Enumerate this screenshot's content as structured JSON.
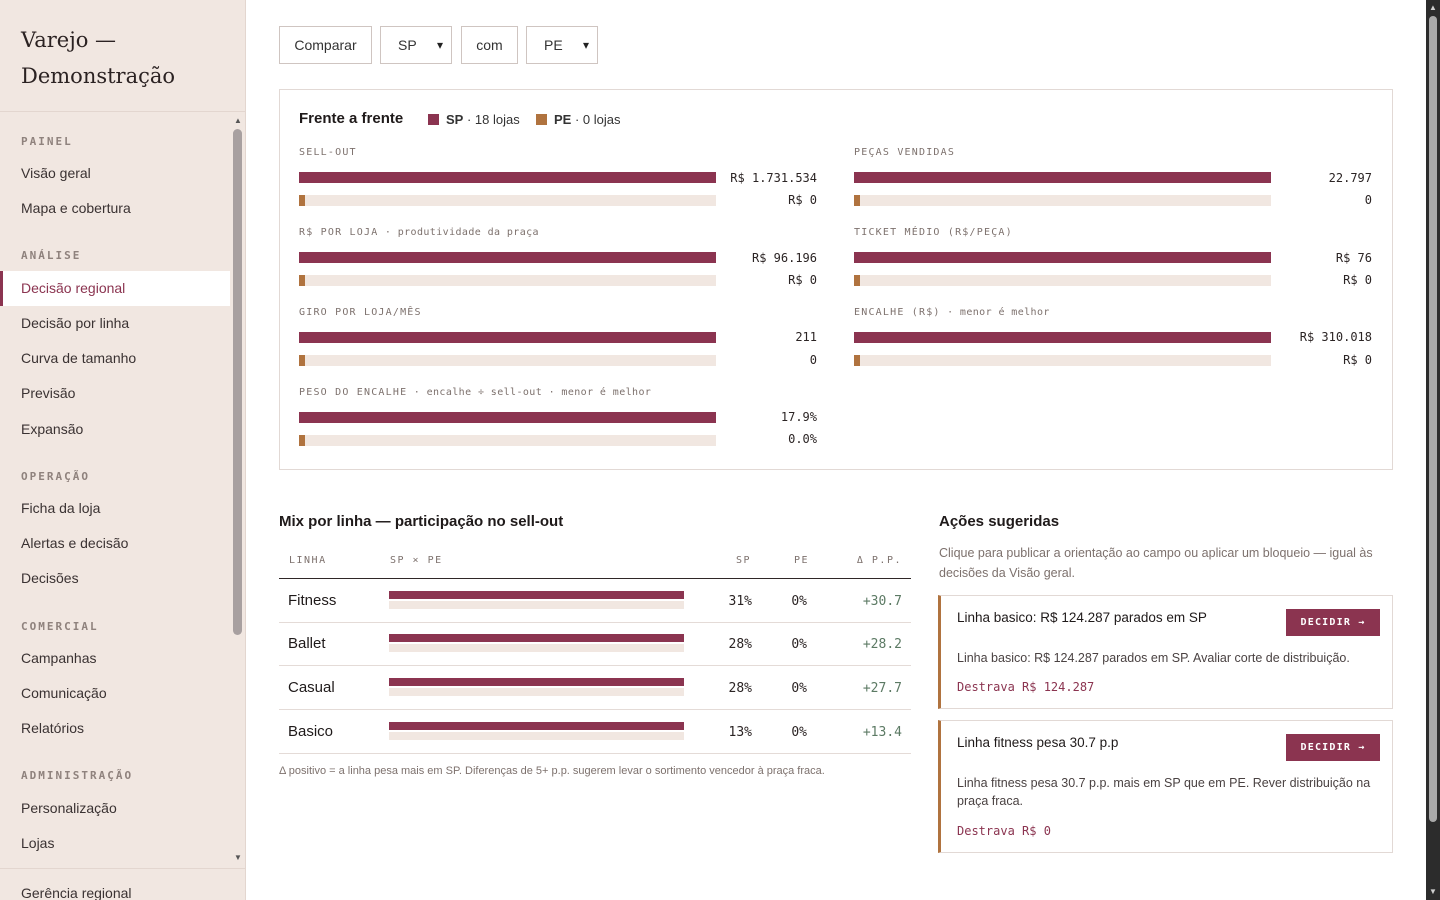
{
  "brand": {
    "line1": "Varejo —",
    "line2": "Demonstração"
  },
  "sidebar": {
    "sections": [
      {
        "label": "PAINEL"
      },
      {
        "label": "ANÁLISE"
      },
      {
        "label": "OPERAÇÃO"
      },
      {
        "label": "COMERCIAL"
      },
      {
        "label": "ADMINISTRAÇÃO"
      }
    ],
    "items": [
      {
        "label": "Visão geral"
      },
      {
        "label": "Mapa e cobertura"
      },
      {
        "label": "Decisão regional"
      },
      {
        "label": "Decisão por linha"
      },
      {
        "label": "Curva de tamanho"
      },
      {
        "label": "Previsão"
      },
      {
        "label": "Expansão"
      },
      {
        "label": "Ficha da loja"
      },
      {
        "label": "Alertas e decisão"
      },
      {
        "label": "Decisões"
      },
      {
        "label": "Campanhas"
      },
      {
        "label": "Comunicação"
      },
      {
        "label": "Relatórios"
      },
      {
        "label": "Personalização"
      },
      {
        "label": "Lojas"
      }
    ],
    "active": "Decisão regional",
    "footer": "Gerência regional"
  },
  "controls": {
    "compare_label": "Comparar",
    "region_a": "SP",
    "with_label": "com",
    "region_b": "PE"
  },
  "head_to_head": {
    "title": "Frente a frente",
    "legend": [
      {
        "region": "SP",
        "detail": "· 18 lojas",
        "color": "#8b3450"
      },
      {
        "region": "PE",
        "detail": "· 0 lojas",
        "color": "#b0733f"
      }
    ],
    "metrics": [
      {
        "label": "SELL-OUT",
        "sub": "",
        "sp_value": "R$ 1.731.534",
        "pe_value": "R$ 0",
        "sp_share": 1.0,
        "pe_share": 0.0
      },
      {
        "label": "PEÇAS VENDIDAS",
        "sub": "",
        "sp_value": "22.797",
        "pe_value": "0",
        "sp_share": 1.0,
        "pe_share": 0.0
      },
      {
        "label": "R$ POR LOJA",
        "sub": " · produtividade da praça",
        "sp_value": "R$ 96.196",
        "pe_value": "R$ 0",
        "sp_share": 1.0,
        "pe_share": 0.0
      },
      {
        "label": "TICKET MÉDIO (R$/PEÇA)",
        "sub": "",
        "sp_value": "R$ 76",
        "pe_value": "R$ 0",
        "sp_share": 1.0,
        "pe_share": 0.0
      },
      {
        "label": "GIRO POR LOJA/MÊS",
        "sub": "",
        "sp_value": "211",
        "pe_value": "0",
        "sp_share": 1.0,
        "pe_share": 0.0
      },
      {
        "label": "ENCALHE (R$)",
        "sub": " · menor é melhor",
        "sp_value": "R$ 310.018",
        "pe_value": "R$ 0",
        "sp_share": 1.0,
        "pe_share": 0.0
      },
      {
        "label": "PESO DO ENCALHE",
        "sub": " · encalhe ÷ sell-out · menor é melhor",
        "sp_value": "17.9%",
        "pe_value": "0.0%",
        "sp_share": 1.0,
        "pe_share": 0.0
      }
    ]
  },
  "mix": {
    "title": "Mix por linha — participação no sell-out",
    "columns": {
      "line": "LINHA",
      "bars": "SP × PE",
      "sp": "SP",
      "pe": "PE",
      "delta": "Δ P.P."
    },
    "rows": [
      {
        "line": "Fitness",
        "sp": "31%",
        "pe": "0%",
        "delta": "+30.7"
      },
      {
        "line": "Ballet",
        "sp": "28%",
        "pe": "0%",
        "delta": "+28.2"
      },
      {
        "line": "Casual",
        "sp": "28%",
        "pe": "0%",
        "delta": "+27.7"
      },
      {
        "line": "Basico",
        "sp": "13%",
        "pe": "0%",
        "delta": "+13.4"
      }
    ],
    "note": "Δ positivo = a linha pesa mais em SP. Diferenças de 5+ p.p. sugerem levar o sortimento vencedor à praça fraca."
  },
  "actions": {
    "title": "Ações sugeridas",
    "description": "Clique para publicar a orientação ao campo ou aplicar um bloqueio — igual às decisões da Visão geral.",
    "items": [
      {
        "title": "Linha basico: R$ 124.287 parados em SP",
        "button": "DECIDIR →",
        "text": "Linha basico: R$ 124.287 parados em SP. Avaliar corte de distribuição.",
        "unlock": "Destrava R$ 124.287"
      },
      {
        "title": "Linha fitness pesa 30.7 p.p",
        "button": "DECIDIR →",
        "text": "Linha fitness pesa 30.7 p.p. mais em SP que em PE. Rever distribuição na praça fraca.",
        "unlock": "Destrava R$ 0"
      }
    ]
  }
}
